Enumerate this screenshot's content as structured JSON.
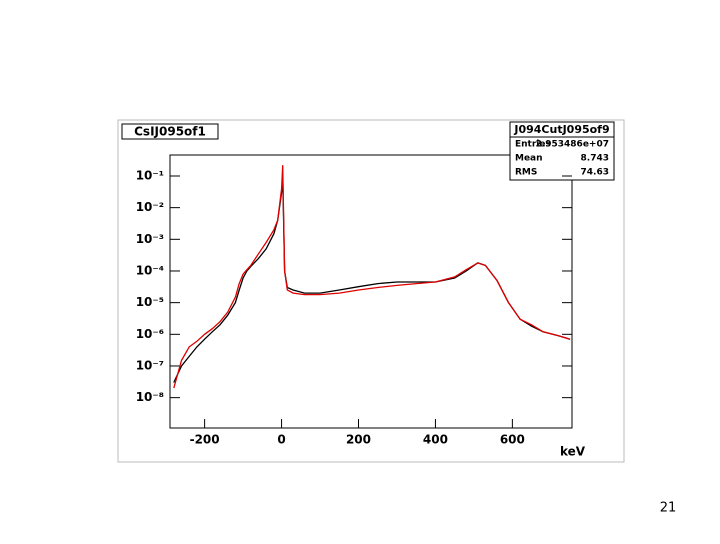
{
  "chart_data": {
    "type": "line",
    "title": "CsIJ095of1",
    "xlabel": "keV",
    "log_y": true,
    "x": [
      -280,
      -260,
      -240,
      -220,
      -200,
      -180,
      -160,
      -140,
      -120,
      -110,
      -100,
      -90,
      -80,
      -60,
      -40,
      -20,
      -10,
      0,
      3,
      8,
      15,
      30,
      60,
      100,
      150,
      200,
      250,
      300,
      350,
      400,
      450,
      480,
      510,
      530,
      560,
      590,
      620,
      650,
      680,
      720,
      750
    ],
    "series": [
      {
        "color": "#000000",
        "values": [
          3e-08,
          1e-07,
          2e-07,
          4e-07,
          7e-07,
          1.2e-06,
          2e-06,
          4e-06,
          1e-05,
          2.5e-05,
          6e-05,
          0.0001,
          0.00014,
          0.00025,
          0.0005,
          0.0015,
          0.004,
          0.03,
          0.1,
          0.0001,
          3e-05,
          2.5e-05,
          2e-05,
          2e-05,
          2.5e-05,
          3.2e-05,
          4e-05,
          4.5e-05,
          4.5e-05,
          4.5e-05,
          6e-05,
          0.0001,
          0.00018,
          0.00015,
          5e-05,
          1e-05,
          3e-06,
          1.8e-06,
          1.2e-06,
          9e-07,
          7e-07
        ]
      },
      {
        "color": "#e00000",
        "values": [
          2e-08,
          1.5e-07,
          4e-07,
          6e-07,
          1e-06,
          1.5e-06,
          2.5e-06,
          5e-06,
          1.5e-05,
          4e-05,
          8e-05,
          0.00011,
          0.00015,
          0.00035,
          0.0008,
          0.002,
          0.004,
          0.04,
          0.22,
          0.0001,
          2.5e-05,
          2e-05,
          1.8e-05,
          1.8e-05,
          2e-05,
          2.5e-05,
          3e-05,
          3.5e-05,
          4e-05,
          4.5e-05,
          6.5e-05,
          0.00011,
          0.00018,
          0.00015,
          5e-05,
          1e-05,
          3e-06,
          2e-06,
          1.2e-06,
          9e-07,
          7e-07
        ]
      }
    ],
    "xlim": [
      -290,
      755
    ],
    "xticks": [
      -200,
      0,
      200,
      400,
      600
    ],
    "ylim": [
      1.1e-09,
      0.46
    ],
    "yticks": [
      {
        "value": 0.1,
        "label": "10⁻¹"
      },
      {
        "value": 0.01,
        "label": "10⁻²"
      },
      {
        "value": 0.001,
        "label": "10⁻³"
      },
      {
        "value": 0.0001,
        "label": "10⁻⁴"
      },
      {
        "value": 1e-05,
        "label": "10⁻⁵"
      },
      {
        "value": 1e-06,
        "label": "10⁻⁶"
      },
      {
        "value": 1e-07,
        "label": "10⁻⁷"
      },
      {
        "value": 1e-08,
        "label": "10⁻⁸"
      }
    ],
    "stats": {
      "title": "J094CutJ095of9",
      "rows": [
        {
          "label": "Entries",
          "value": "2.953486e+07"
        },
        {
          "label": "Mean",
          "value": 8.743
        },
        {
          "label": "RMS",
          "value": 74.63
        }
      ]
    }
  },
  "slide": {
    "page_number": "21"
  }
}
